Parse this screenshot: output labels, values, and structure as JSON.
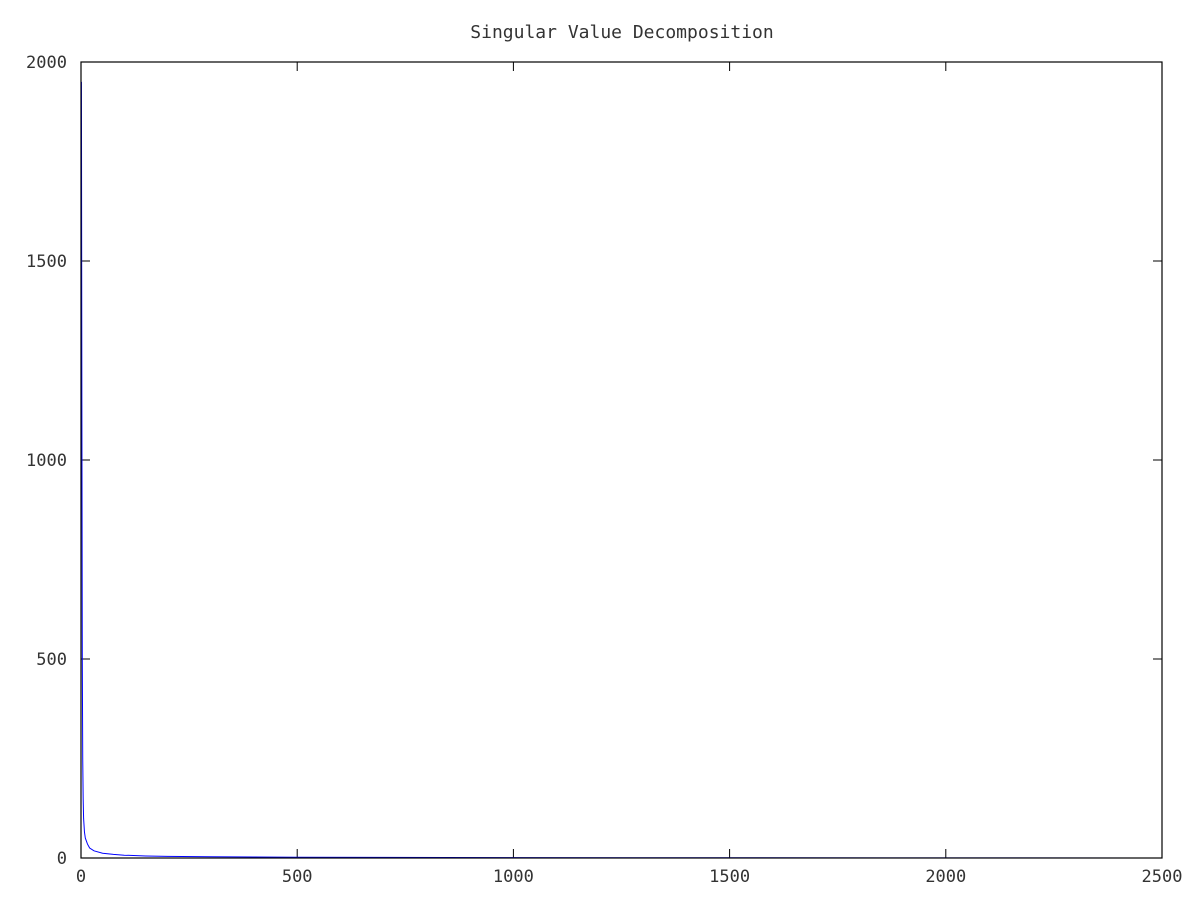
{
  "chart_data": {
    "type": "line",
    "title": "Singular Value Decomposition",
    "xlabel": "",
    "ylabel": "",
    "xlim": [
      0,
      2500
    ],
    "ylim": [
      0,
      2000
    ],
    "xticks": [
      0,
      500,
      1000,
      1500,
      2000,
      2500
    ],
    "yticks": [
      0,
      500,
      1000,
      1500,
      2000
    ],
    "xtick_labels": [
      "0",
      "500",
      "1000",
      "1500",
      "2000",
      "2500"
    ],
    "ytick_labels": [
      "0",
      "500",
      "1000",
      "1500",
      "2000"
    ],
    "grid": false,
    "legend": "none",
    "series": [
      {
        "color": "#0000ff",
        "x": [
          1,
          2,
          3,
          4,
          5,
          6,
          8,
          10,
          15,
          20,
          30,
          50,
          75,
          100,
          150,
          200,
          300,
          400,
          500,
          700,
          1000,
          1500,
          2000,
          2500
        ],
        "values": [
          1950,
          1150,
          500,
          250,
          150,
          100,
          65,
          50,
          35,
          25,
          18,
          12,
          9,
          7,
          5,
          4,
          3,
          2.5,
          2,
          1.5,
          1,
          0.6,
          0.3,
          0.1
        ]
      }
    ]
  }
}
